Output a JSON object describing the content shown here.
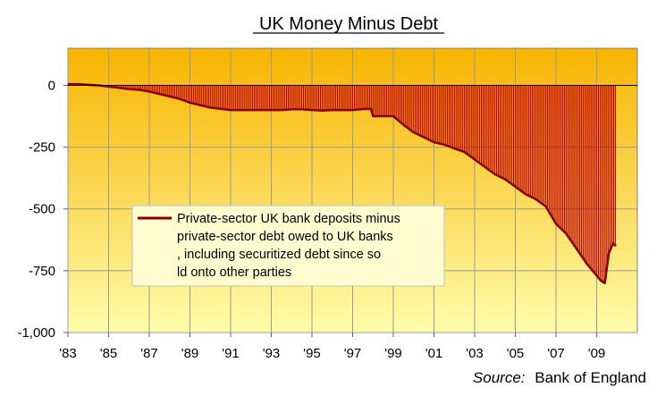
{
  "chart_data": {
    "type": "area",
    "title": "UK Money Minus Debt",
    "xlabel": "",
    "ylabel": "",
    "x_tick_labels": [
      "'83",
      "'85",
      "'87",
      "'89",
      "'91",
      "'93",
      "'95",
      "'97",
      "'99",
      "'01",
      "'03",
      "'05",
      "'07",
      "'09"
    ],
    "y_tick_labels": [
      "0",
      "-250",
      "-500",
      "-750",
      "-1,000"
    ],
    "y_ticks": [
      0,
      -250,
      -500,
      -750,
      -1000
    ],
    "ylim": [
      -1000,
      150
    ],
    "xlim": [
      1983,
      2011
    ],
    "grid": true,
    "legend_position": "left-middle",
    "series": [
      {
        "name": "Private-sector UK bank deposits minus private-sector debt owed to UK banks, including securitized debt since sold onto other parties",
        "color": "#c00000",
        "x": [
          1983.0,
          1983.5,
          1984.0,
          1984.5,
          1985.0,
          1985.5,
          1986.0,
          1986.5,
          1987.0,
          1987.5,
          1988.0,
          1988.5,
          1989.0,
          1989.5,
          1990.0,
          1990.5,
          1991.0,
          1991.5,
          1992.0,
          1992.5,
          1993.0,
          1993.5,
          1994.0,
          1994.5,
          1995.0,
          1995.5,
          1996.0,
          1996.5,
          1997.0,
          1997.5,
          1997.9,
          1998.0,
          1998.5,
          1999.0,
          1999.5,
          2000.0,
          2000.5,
          2001.0,
          2001.5,
          2002.0,
          2002.5,
          2003.0,
          2003.5,
          2004.0,
          2004.5,
          2005.0,
          2005.5,
          2006.0,
          2006.5,
          2007.0,
          2007.5,
          2008.0,
          2008.5,
          2008.9,
          2009.2,
          2009.4,
          2009.6,
          2009.8,
          2009.95
        ],
        "values": [
          5,
          5,
          2,
          0,
          -5,
          -10,
          -15,
          -18,
          -25,
          -35,
          -45,
          -55,
          -70,
          -80,
          -90,
          -95,
          -100,
          -100,
          -100,
          -100,
          -100,
          -100,
          -97,
          -97,
          -100,
          -102,
          -100,
          -100,
          -100,
          -96,
          -95,
          -125,
          -125,
          -125,
          -160,
          -190,
          -210,
          -230,
          -240,
          -255,
          -270,
          -300,
          -330,
          -360,
          -380,
          -410,
          -440,
          -460,
          -490,
          -560,
          -600,
          -660,
          -720,
          -760,
          -790,
          -800,
          -680,
          -640,
          -650
        ]
      }
    ],
    "background_gradient": [
      "#f8b400",
      "#fffcaa"
    ],
    "source_label": "Source:",
    "source_text": "Bank of England"
  }
}
